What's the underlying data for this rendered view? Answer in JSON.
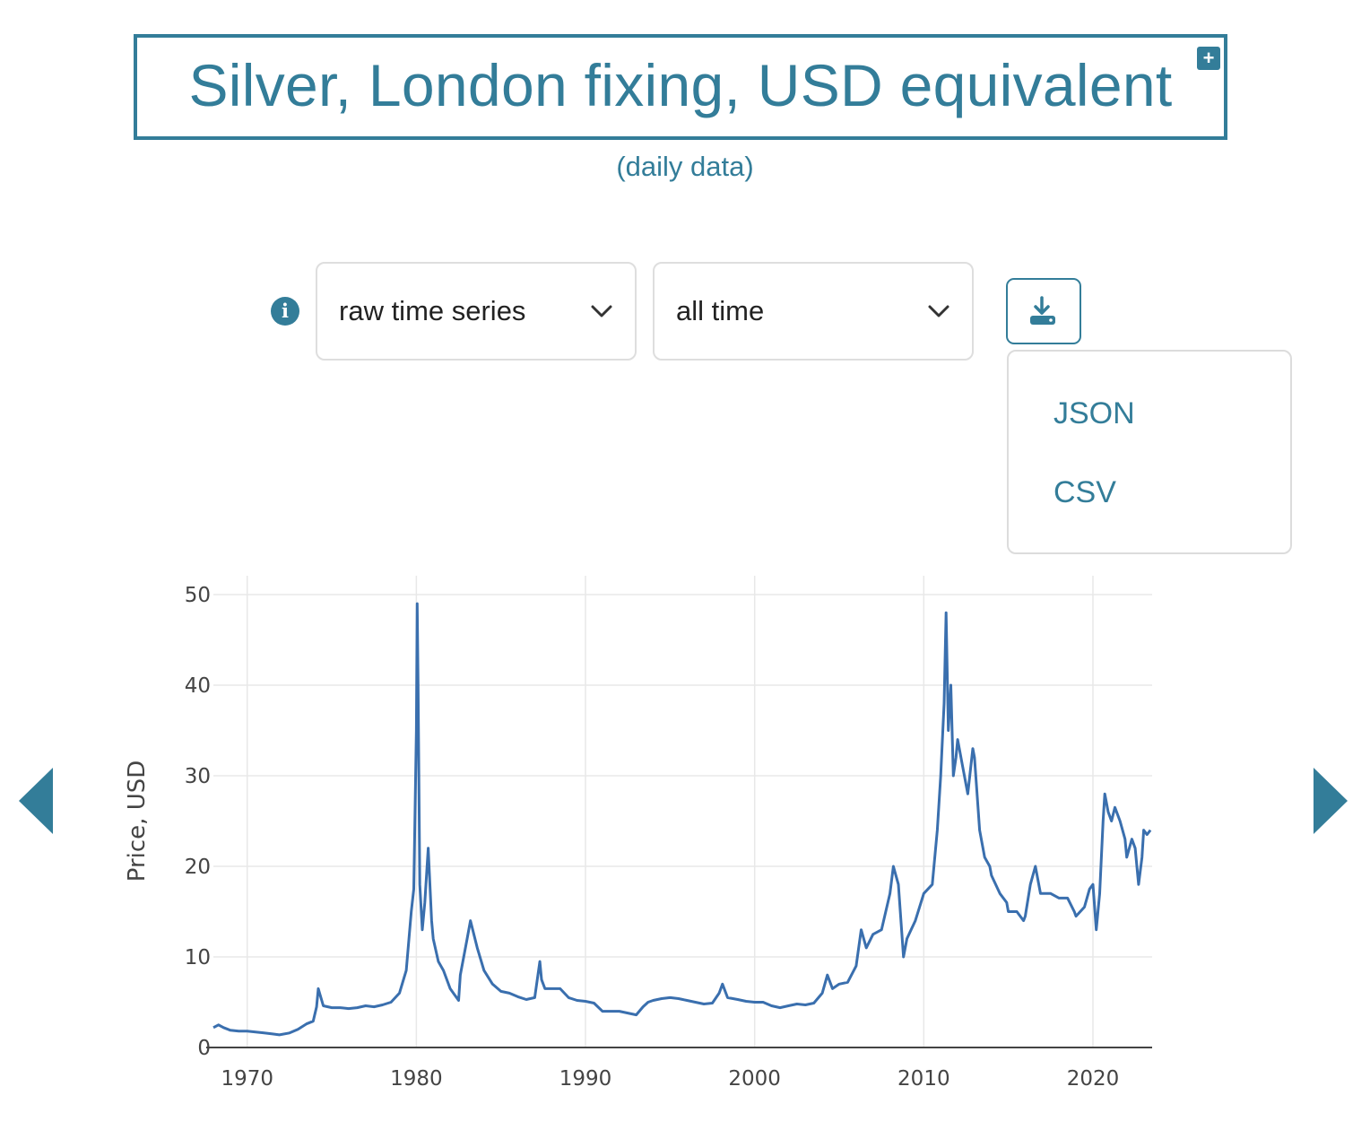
{
  "header": {
    "title": "Silver, London fixing, USD equivalent",
    "subtitle": "(daily data)",
    "expand_icon": "plus-icon"
  },
  "controls": {
    "info_icon": "info-icon",
    "transform_select": {
      "selected": "raw time series"
    },
    "range_select": {
      "selected": "all time"
    },
    "download_icon": "download-icon",
    "download_menu": {
      "items": [
        "JSON",
        "CSV"
      ]
    }
  },
  "navigation": {
    "prev_icon": "triangle-left-icon",
    "next_icon": "triangle-right-icon"
  },
  "colors": {
    "accent": "#337d99",
    "series": "#3a6fae",
    "grid": "#e8e8e8"
  },
  "chart_data": {
    "type": "line",
    "title": "",
    "xlabel": "",
    "ylabel": "Price, USD",
    "xlim": [
      1968,
      2023.5
    ],
    "ylim": [
      0,
      52
    ],
    "x_ticks": [
      1970,
      1980,
      1990,
      2000,
      2010,
      2020
    ],
    "y_ticks": [
      0,
      10,
      20,
      30,
      40,
      50
    ],
    "grid": true,
    "series": [
      {
        "name": "",
        "x": [
          1968.0,
          1968.3,
          1968.6,
          1969.0,
          1969.5,
          1970.0,
          1970.5,
          1971.0,
          1971.5,
          1971.9,
          1972.5,
          1973.0,
          1973.5,
          1973.9,
          1974.1,
          1974.2,
          1974.5,
          1975.0,
          1975.5,
          1976.0,
          1976.5,
          1977.0,
          1977.5,
          1978.0,
          1978.5,
          1979.0,
          1979.4,
          1979.7,
          1979.85,
          1980.0,
          1980.05,
          1980.1,
          1980.2,
          1980.35,
          1980.5,
          1980.7,
          1980.8,
          1980.9,
          1981.0,
          1981.3,
          1981.6,
          1982.0,
          1982.5,
          1982.6,
          1983.0,
          1983.2,
          1983.6,
          1984.0,
          1984.5,
          1985.0,
          1985.5,
          1986.0,
          1986.5,
          1987.0,
          1987.3,
          1987.4,
          1987.6,
          1988.0,
          1988.5,
          1989.0,
          1989.5,
          1990.0,
          1990.5,
          1991.0,
          1991.5,
          1992.0,
          1992.5,
          1993.0,
          1993.4,
          1993.7,
          1994.0,
          1994.5,
          1995.0,
          1995.5,
          1996.0,
          1996.5,
          1997.0,
          1997.5,
          1997.9,
          1998.1,
          1998.4,
          1999.0,
          1999.5,
          2000.0,
          2000.5,
          2001.0,
          2001.5,
          2002.0,
          2002.5,
          2003.0,
          2003.5,
          2004.0,
          2004.3,
          2004.6,
          2005.0,
          2005.5,
          2006.0,
          2006.3,
          2006.6,
          2007.0,
          2007.5,
          2008.0,
          2008.2,
          2008.5,
          2008.8,
          2009.0,
          2009.5,
          2010.0,
          2010.5,
          2010.8,
          2011.0,
          2011.2,
          2011.32,
          2011.45,
          2011.6,
          2011.75,
          2011.9,
          2012.0,
          2012.3,
          2012.6,
          2012.9,
          2013.0,
          2013.3,
          2013.6,
          2013.9,
          2014.0,
          2014.5,
          2014.9,
          2015.0,
          2015.5,
          2015.9,
          2016.0,
          2016.3,
          2016.6,
          2016.9,
          2017.0,
          2017.5,
          2018.0,
          2018.5,
          2018.9,
          2019.0,
          2019.5,
          2019.8,
          2020.0,
          2020.2,
          2020.4,
          2020.6,
          2020.7,
          2020.9,
          2021.1,
          2021.3,
          2021.6,
          2021.9,
          2022.0,
          2022.3,
          2022.5,
          2022.7,
          2022.9,
          2023.0,
          2023.2,
          2023.4
        ],
        "y": [
          2.2,
          2.5,
          2.2,
          1.9,
          1.8,
          1.8,
          1.7,
          1.6,
          1.5,
          1.4,
          1.6,
          2.0,
          2.6,
          2.9,
          4.5,
          6.5,
          4.6,
          4.4,
          4.4,
          4.3,
          4.4,
          4.6,
          4.5,
          4.7,
          5.0,
          6.0,
          8.5,
          15.0,
          17.5,
          35.0,
          49.0,
          40.0,
          18.0,
          13.0,
          16.0,
          22.0,
          18.0,
          14.0,
          12.0,
          9.5,
          8.5,
          6.5,
          5.2,
          8.0,
          12.0,
          14.0,
          11.0,
          8.5,
          7.0,
          6.2,
          6.0,
          5.6,
          5.3,
          5.5,
          9.5,
          7.5,
          6.5,
          6.5,
          6.5,
          5.5,
          5.2,
          5.1,
          4.9,
          4.0,
          4.0,
          4.0,
          3.8,
          3.6,
          4.5,
          5.0,
          5.2,
          5.4,
          5.5,
          5.4,
          5.2,
          5.0,
          4.8,
          4.9,
          6.0,
          7.0,
          5.5,
          5.3,
          5.1,
          5.0,
          5.0,
          4.6,
          4.4,
          4.6,
          4.8,
          4.7,
          4.9,
          6.0,
          8.0,
          6.5,
          7.0,
          7.2,
          9.0,
          13.0,
          11.0,
          12.5,
          13.0,
          17.0,
          20.0,
          18.0,
          10.0,
          12.0,
          14.0,
          17.0,
          18.0,
          24.0,
          30.0,
          38.0,
          48.0,
          35.0,
          40.0,
          30.0,
          32.0,
          34.0,
          31.0,
          28.0,
          33.0,
          32.0,
          24.0,
          21.0,
          20.0,
          19.0,
          17.0,
          16.0,
          15.0,
          15.0,
          14.0,
          14.5,
          18.0,
          20.0,
          17.0,
          17.0,
          17.0,
          16.5,
          16.5,
          15.0,
          14.5,
          15.5,
          17.5,
          18.0,
          13.0,
          17.0,
          25.0,
          28.0,
          26.0,
          25.0,
          26.5,
          25.0,
          23.0,
          21.0,
          23.0,
          22.0,
          18.0,
          21.0,
          24.0,
          23.5,
          24.0
        ]
      }
    ]
  }
}
